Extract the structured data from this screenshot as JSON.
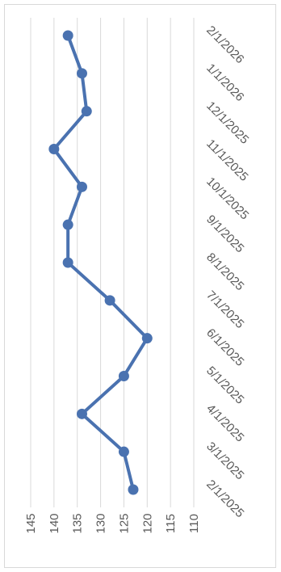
{
  "chart_data": {
    "type": "line",
    "orientation": "rotated-90-clockwise",
    "x": [
      "2/1/2025",
      "3/1/2025",
      "4/1/2025",
      "5/1/2025",
      "6/1/2025",
      "7/1/2025",
      "8/1/2025",
      "9/1/2025",
      "10/1/2025",
      "11/1/2025",
      "12/1/2025",
      "1/1/2026",
      "2/1/2026"
    ],
    "series": [
      {
        "values": [
          123,
          125,
          134,
          125,
          120,
          128,
          137,
          137,
          134,
          140,
          133,
          134,
          137
        ]
      }
    ],
    "ylim": [
      110,
      145
    ],
    "yticks": [
      145,
      140,
      135,
      130,
      125,
      120,
      115,
      110
    ],
    "title": "",
    "xlabel": "",
    "ylabel": "",
    "grid": true,
    "legend": "none",
    "colors": {
      "line": "#4a72b0",
      "grid": "#d9d9d9",
      "text": "#595959"
    }
  }
}
